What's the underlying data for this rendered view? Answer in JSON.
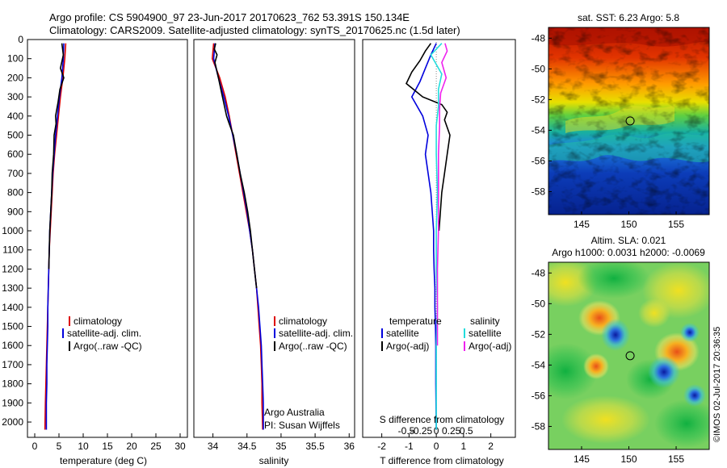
{
  "header": {
    "line1": "Argo profile: CS 5904900_97 23-Jun-2017 20170623_762 53.391S 150.134E",
    "line2": "Climatology: CARS2009. Satellite-adjusted climatology: synTS_20170625.nc (1.5d later)"
  },
  "colors": {
    "climatology": "#dd0000",
    "satellite": "#0000dd",
    "argo": "#000000",
    "salinity_satellite": "#22dddd",
    "salinity_argo": "#ee22ee"
  },
  "chart_data": [
    {
      "type": "line",
      "xlabel": "temperature (deg C)",
      "xlim": [
        -1.5,
        31.5
      ],
      "ylim": [
        2080,
        0
      ],
      "xticks": [
        "0",
        "5",
        "10",
        "15",
        "20",
        "25",
        "30"
      ],
      "yticks": [
        "0",
        "100",
        "200",
        "300",
        "400",
        "500",
        "600",
        "700",
        "800",
        "900",
        "1000",
        "1100",
        "1200",
        "1300",
        "1400",
        "1500",
        "1600",
        "1700",
        "1800",
        "1900",
        "2000"
      ],
      "legend": [
        "climatology",
        "satellite-adj. clim.",
        "Argo(..raw -QC)"
      ],
      "series": [
        {
          "name": "climatology",
          "x": [
            6.4,
            6.2,
            5.8,
            5.3,
            4.9,
            4.5,
            4.1,
            3.8,
            3.6,
            3.4,
            3.2,
            3.0,
            2.9,
            2.8,
            2.7,
            2.6,
            2.5,
            2.4,
            2.3,
            2.2,
            2.1
          ],
          "y": [
            20,
            100,
            200,
            300,
            400,
            500,
            600,
            700,
            800,
            900,
            1000,
            1100,
            1200,
            1300,
            1400,
            1500,
            1600,
            1700,
            1800,
            1900,
            2040
          ]
        },
        {
          "name": "satellite-adj. clim.",
          "x": [
            6.0,
            5.9,
            5.6,
            5.1,
            4.7,
            4.3,
            4.0,
            3.7,
            3.5,
            3.3,
            3.1,
            3.0,
            2.9,
            2.8,
            2.7,
            2.7,
            2.6,
            2.5,
            2.5,
            2.4,
            2.4
          ],
          "y": [
            20,
            100,
            200,
            300,
            400,
            500,
            600,
            700,
            800,
            900,
            1000,
            1100,
            1200,
            1300,
            1400,
            1500,
            1600,
            1700,
            1800,
            1900,
            2040
          ]
        },
        {
          "name": "Argo(..raw -QC)",
          "x": [
            5.6,
            5.9,
            5.3,
            6.0,
            5.2,
            4.8,
            4.3,
            4.4,
            4.0,
            3.9,
            3.6,
            3.5,
            3.3,
            3.1,
            3.0,
            2.9
          ],
          "y": [
            20,
            80,
            150,
            200,
            260,
            330,
            400,
            440,
            500,
            600,
            700,
            800,
            900,
            1000,
            1100,
            1200
          ]
        }
      ],
      "annotations": []
    },
    {
      "type": "line",
      "xlabel": "salinity",
      "xlim": [
        33.72,
        36.08
      ],
      "ylim": [
        2080,
        0
      ],
      "xticks": [
        "34",
        "34.5",
        "35",
        "35.5",
        "36"
      ],
      "legend": [
        "climatology",
        "satellite-adj. clim.",
        "Argo(..raw -QC)"
      ],
      "series": [
        {
          "name": "climatology",
          "x": [
            34.01,
            33.99,
            34.1,
            34.18,
            34.24,
            34.29,
            34.34,
            34.39,
            34.44,
            34.49,
            34.54,
            34.58,
            34.61,
            34.64,
            34.66,
            34.68,
            34.7,
            34.71,
            34.72,
            34.72,
            34.73
          ],
          "y": [
            20,
            100,
            200,
            300,
            400,
            500,
            600,
            700,
            800,
            900,
            1000,
            1100,
            1200,
            1300,
            1400,
            1500,
            1600,
            1700,
            1800,
            1900,
            2040
          ]
        },
        {
          "name": "satellite-adj. clim.",
          "x": [
            34.03,
            34.01,
            34.08,
            34.16,
            34.23,
            34.29,
            34.35,
            34.4,
            34.45,
            34.5,
            34.54,
            34.58,
            34.61,
            34.64,
            34.67,
            34.69,
            34.71,
            34.72,
            34.73,
            34.74,
            34.74
          ],
          "y": [
            20,
            100,
            200,
            300,
            400,
            500,
            600,
            700,
            800,
            900,
            1000,
            1100,
            1200,
            1300,
            1400,
            1500,
            1600,
            1700,
            1800,
            1900,
            2040
          ]
        },
        {
          "name": "Argo(..raw -QC)",
          "x": [
            34.04,
            34.02,
            34.06,
            34.03,
            34.08,
            34.14,
            34.2,
            34.24,
            34.3,
            34.35,
            34.4,
            34.46,
            34.51,
            34.55,
            34.58,
            34.61,
            34.64
          ],
          "y": [
            20,
            50,
            80,
            120,
            200,
            300,
            400,
            440,
            500,
            600,
            700,
            800,
            900,
            1000,
            1100,
            1200,
            1300
          ]
        }
      ],
      "annotations": [
        "Argo Australia",
        "PI: Susan Wijffels"
      ]
    },
    {
      "type": "line",
      "xlabel": "T difference from climatology",
      "xlabel2": "S difference from climatology",
      "xlim": [
        -2.7,
        2.9
      ],
      "ylim": [
        2080,
        0
      ],
      "xticks": [
        "-2",
        "-1",
        "0",
        "1",
        "2"
      ],
      "xticks2": [
        "-0.5",
        "-0.25",
        "0",
        "0.25",
        "0.5"
      ],
      "legend_temperature_title": "temperature",
      "legend_salinity_title": "salinity",
      "legend": [
        "satellite",
        "Argo(-adj)",
        "satellite",
        "Argo(-adj)"
      ],
      "series": [
        {
          "name": "satellite",
          "x": [
            0.0,
            -0.2,
            -0.4,
            -0.6,
            -0.9,
            -0.5,
            -0.3,
            -0.4,
            -0.3,
            -0.2,
            -0.15,
            -0.1,
            -0.1,
            -0.08,
            -0.05,
            -0.05,
            -0.03,
            -0.02,
            -0.02,
            0.0
          ],
          "y": [
            20,
            80,
            150,
            220,
            300,
            400,
            500,
            600,
            700,
            800,
            900,
            1000,
            1100,
            1200,
            1300,
            1400,
            1500,
            1600,
            1800,
            2040
          ]
        },
        {
          "name": "Argo(-adj)",
          "x": [
            -0.2,
            -0.4,
            -0.6,
            -0.9,
            -1.1,
            -0.5,
            0.2,
            0.4,
            0.3,
            0.5,
            0.4,
            0.3,
            0.2,
            0.15,
            0.1
          ],
          "y": [
            20,
            60,
            110,
            170,
            230,
            300,
            340,
            380,
            420,
            500,
            600,
            700,
            800,
            900,
            1000
          ]
        },
        {
          "name": "satellite",
          "x": [
            0.05,
            -0.05,
            0.05,
            0.02,
            0.02,
            0.0,
            0.0,
            0.01,
            0.0,
            0.0,
            0.01,
            0.0,
            0.0,
            0.0,
            0.0
          ],
          "y": [
            20,
            80,
            180,
            260,
            350,
            450,
            600,
            800,
            1000,
            1200,
            1400,
            1600,
            1800,
            1950,
            2040
          ]
        },
        {
          "name": "Argo(-adj)",
          "x": [
            0.08,
            0.1,
            0.05,
            0.09,
            0.04,
            0.03,
            0.03,
            0.02,
            0.02,
            0.02,
            0.01,
            0.01,
            0.01
          ],
          "y": [
            20,
            60,
            120,
            200,
            280,
            360,
            450,
            600,
            800,
            1000,
            1200,
            1400,
            1600
          ]
        }
      ],
      "annotations": []
    },
    {
      "type": "heatmap",
      "title": "sat. SST: 6.23 Argo: 5.8",
      "xlim": [
        141.5,
        158.5
      ],
      "ylim": [
        -59.5,
        -47.3
      ],
      "xticks": [
        "145",
        "150",
        "155"
      ],
      "yticks": [
        "-48",
        "-50",
        "-52",
        "-54",
        "-56",
        "-58"
      ],
      "marker": {
        "x": 150.134,
        "y": -53.391
      }
    },
    {
      "type": "heatmap",
      "title": "Altim. SLA: 0.021",
      "subtitle": "Argo h1000: 0.0031 h2000: -0.0069",
      "xlim": [
        141.5,
        158.5
      ],
      "ylim": [
        -59.5,
        -47.3
      ],
      "xticks": [
        "145",
        "150",
        "155"
      ],
      "yticks": [
        "-48",
        "-50",
        "-52",
        "-54",
        "-56",
        "-58"
      ],
      "marker": {
        "x": 150.134,
        "y": -53.391
      },
      "side_text": "©IMOS 02-Jul-2017 20:36:35"
    }
  ]
}
